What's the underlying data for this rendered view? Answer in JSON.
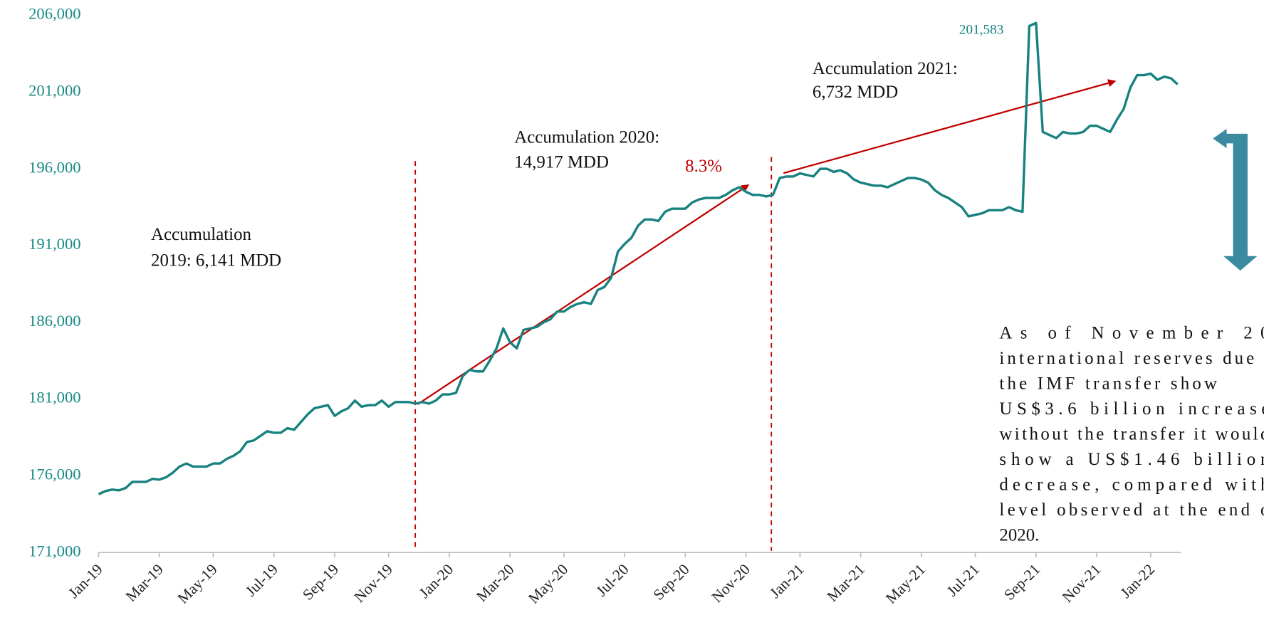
{
  "chart_data": {
    "type": "line",
    "categories": [
      "Jan-19",
      null,
      null,
      null,
      null,
      null,
      null,
      null,
      null,
      "Mar-19",
      null,
      null,
      null,
      null,
      null,
      null,
      null,
      "May-19",
      null,
      null,
      null,
      null,
      null,
      null,
      null,
      null,
      "Jul-19",
      null,
      null,
      null,
      null,
      null,
      null,
      null,
      null,
      "Sep-19",
      null,
      null,
      null,
      null,
      null,
      null,
      null,
      "Nov-19",
      null,
      null,
      null,
      null,
      null,
      null,
      null,
      null,
      "Jan-20",
      null,
      null,
      null,
      null,
      null,
      null,
      null,
      null,
      "Mar-20",
      null,
      null,
      null,
      null,
      null,
      null,
      null,
      "May-20",
      null,
      null,
      null,
      null,
      null,
      null,
      null,
      null,
      "Jul-20",
      null,
      null,
      null,
      null,
      null,
      null,
      null,
      null,
      "Sep-20",
      null,
      null,
      null,
      null,
      null,
      null,
      null,
      null,
      "Nov-20",
      null,
      null,
      null,
      null,
      null,
      null,
      null,
      "Jan-21",
      null,
      null,
      null,
      null,
      null,
      null,
      null,
      null,
      "Mar-21",
      null,
      null,
      null,
      null,
      null,
      null,
      null,
      null,
      "May-21",
      null,
      null,
      null,
      null,
      null,
      null,
      null,
      "Jul-21",
      null,
      null,
      null,
      null,
      null,
      null,
      null,
      null,
      "Sep-21",
      null,
      null,
      null,
      null,
      null,
      null,
      null,
      null,
      "Nov-21",
      null,
      null,
      null,
      null,
      null,
      null,
      null,
      "Jan-22",
      null,
      null,
      null,
      null
    ],
    "series": [
      {
        "color": "#17827f",
        "values": [
          174800,
          175000,
          175100,
          175050,
          175200,
          175600,
          175600,
          175600,
          175800,
          175750,
          175900,
          176200,
          176600,
          176800,
          176600,
          176600,
          176600,
          176800,
          176800,
          177100,
          177300,
          177600,
          178200,
          178300,
          178600,
          178900,
          178800,
          178800,
          179100,
          179000,
          179500,
          180000,
          180400,
          180500,
          180600,
          179900,
          180200,
          180400,
          180900,
          180500,
          180600,
          180600,
          180900,
          180500,
          180800,
          180800,
          180800,
          180700,
          180800,
          180700,
          180900,
          181300,
          181300,
          181400,
          182500,
          182900,
          182800,
          182800,
          183500,
          184300,
          185600,
          184700,
          184300,
          185500,
          185600,
          185700,
          186000,
          186200,
          186700,
          186700,
          187000,
          187200,
          187300,
          187200,
          188100,
          188300,
          188900,
          190600,
          191100,
          191500,
          192300,
          192700,
          192700,
          192600,
          193200,
          193400,
          193400,
          193400,
          193800,
          194000,
          194100,
          194100,
          194100,
          194300,
          194600,
          194800,
          194500,
          194300,
          194300,
          194200,
          194300,
          195400,
          195500,
          195500,
          195700,
          195600,
          195500,
          196000,
          196000,
          195800,
          195900,
          195700,
          195300,
          195100,
          195000,
          194900,
          194900,
          194800,
          195000,
          195200,
          195400,
          195400,
          195300,
          195100,
          194600,
          194300,
          194100,
          193800,
          193500,
          192900,
          193000,
          193100,
          193300,
          193300,
          193300,
          193500,
          193300,
          193200,
          205300,
          205500,
          198400,
          198200,
          198000,
          198400,
          198300,
          198300,
          198400,
          198800,
          198800,
          198600,
          198400,
          199200,
          199900,
          201300,
          202100,
          202100,
          202200,
          201800,
          202000,
          201900,
          201500
        ]
      }
    ],
    "ylim": [
      171000,
      206000
    ],
    "yticks": [
      {
        "value": 171000,
        "label": "171,000"
      },
      {
        "value": 176000,
        "label": "176,000"
      },
      {
        "value": 181000,
        "label": "181,000"
      },
      {
        "value": 186000,
        "label": "186,000"
      },
      {
        "value": 191000,
        "label": "191,000"
      },
      {
        "value": 196000,
        "label": "196,000"
      },
      {
        "value": 201000,
        "label": "201,000"
      },
      {
        "value": 206000,
        "label": "206,000"
      }
    ],
    "annotations": [
      {
        "lines": [
          "Accumulation",
          "2019: 6,141 MDD"
        ]
      },
      {
        "lines": [
          "Accumulation 2020:",
          "14,917 MDD"
        ]
      },
      {
        "lines": [
          "8.3%"
        ]
      },
      {
        "lines": [
          "Accumulation 2021:",
          "6,732 MDD"
        ]
      },
      {
        "lines": [
          "201,583"
        ]
      },
      {
        "lines": [
          "As of November 20",
          "international reserves due t",
          "the IMF transfer show",
          "US$3.6 billion increase",
          "without the transfer it would",
          "show a US$1.46 billion",
          "decrease, compared with",
          "level observed at the end o",
          "2020."
        ]
      }
    ]
  }
}
